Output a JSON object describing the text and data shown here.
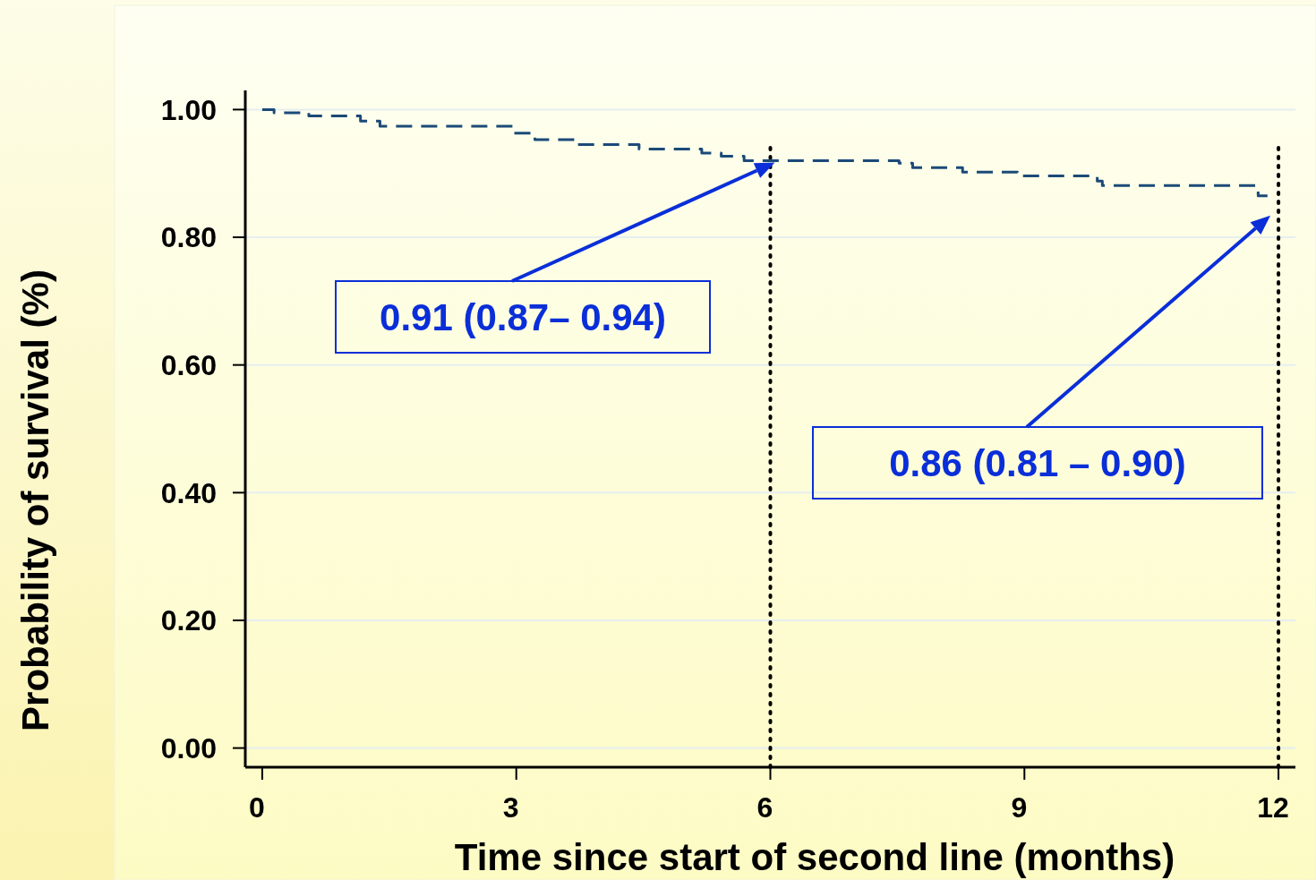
{
  "chart_data": {
    "type": "step",
    "xlabel": "Time since start of second line (months)",
    "ylabel": "Probability of survival (%)",
    "series": [
      {
        "color": "#1b4a78",
        "x": [
          0,
          0.14,
          0.55,
          1.16,
          1.39,
          2.97,
          3.22,
          3.72,
          4.45,
          5.19,
          5.42,
          5.69,
          7.52,
          7.68,
          8.27,
          8.92,
          9.86,
          9.92,
          11.76,
          11.87
        ],
        "values": [
          1.0,
          0.995,
          0.99,
          0.982,
          0.974,
          0.963,
          0.953,
          0.945,
          0.938,
          0.932,
          0.927,
          0.92,
          0.916,
          0.909,
          0.902,
          0.896,
          0.888,
          0.881,
          0.865,
          0.865
        ]
      }
    ],
    "line_style": "dashed",
    "xlim": [
      -0.2,
      12.2
    ],
    "ylim": [
      -0.03,
      1.03
    ],
    "xticks": [
      0,
      3,
      6,
      9,
      12
    ],
    "yticks": [
      {
        "value": 0,
        "label": "0.00"
      },
      {
        "value": 0.2,
        "label": "0.20"
      },
      {
        "value": 0.4,
        "label": "0.40"
      },
      {
        "value": 0.6,
        "label": "0.60"
      },
      {
        "value": 0.8,
        "label": "0.80"
      },
      {
        "value": 1,
        "label": "1.00"
      }
    ],
    "grid": "y",
    "ref_lines": [
      {
        "axis": "x",
        "value": 6,
        "line_style": "dotted",
        "color": "#000000"
      },
      {
        "axis": "x",
        "value": 12,
        "line_style": "dotted",
        "color": "#000000"
      }
    ],
    "annotations": [
      "0.91  (0.87– 0.94)",
      "0.86 (0.81 – 0.90)"
    ]
  }
}
